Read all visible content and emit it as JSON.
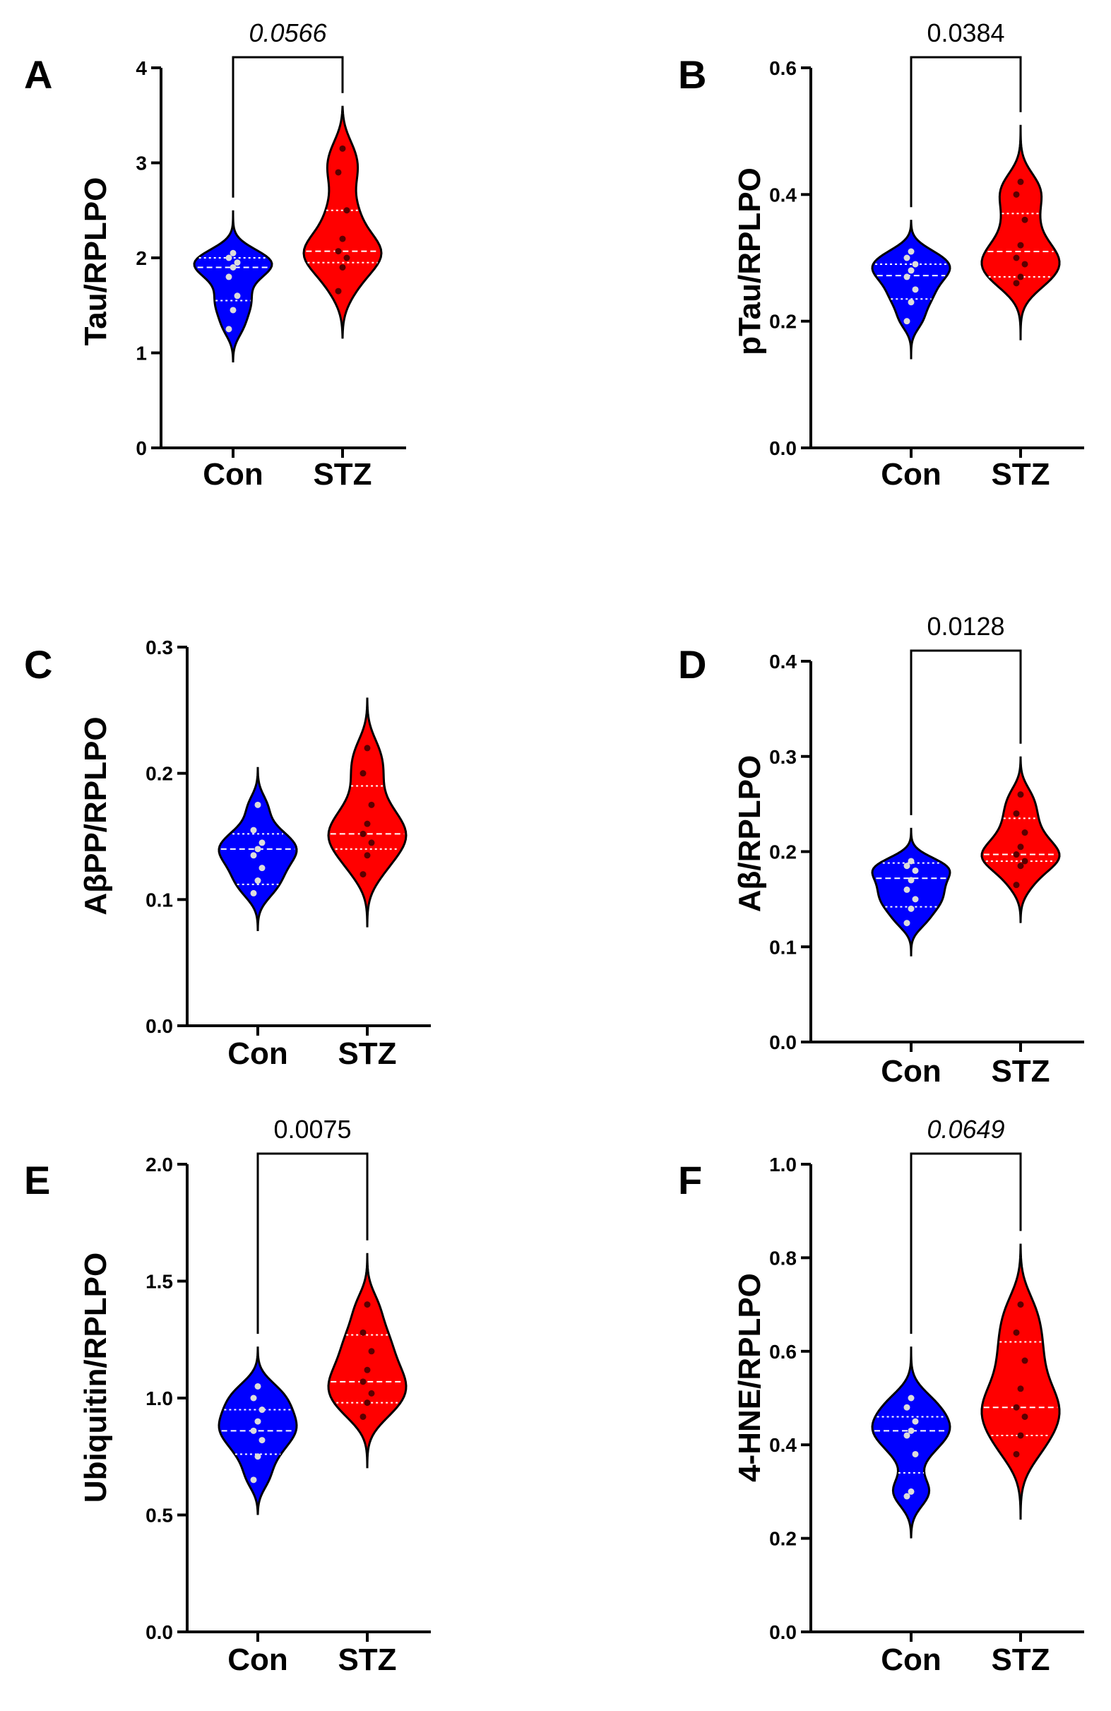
{
  "chart_data": [
    {
      "type": "violin",
      "panel": "A",
      "ylabel": "Tau/RPLPO",
      "ylim": [
        0,
        4
      ],
      "yticks": [
        "0",
        "1",
        "2",
        "3",
        "4"
      ],
      "categories": [
        "Con",
        "STZ"
      ],
      "colors": [
        "#0000ff",
        "#ff0000"
      ],
      "groups": [
        {
          "name": "Con",
          "min": 0.9,
          "max": 2.5,
          "median": 1.9,
          "q1": 1.55,
          "q3": 2.0,
          "points": [
            1.25,
            1.45,
            1.6,
            1.8,
            1.9,
            1.95,
            2.0,
            2.05
          ]
        },
        {
          "name": "STZ",
          "min": 1.15,
          "max": 3.6,
          "median": 2.07,
          "q1": 1.95,
          "q3": 2.5,
          "points": [
            1.65,
            1.9,
            2.0,
            2.07,
            2.2,
            2.5,
            2.9,
            3.15
          ]
        }
      ],
      "comparison": {
        "label": "0.0566",
        "italic": true
      }
    },
    {
      "type": "violin",
      "panel": "B",
      "ylabel": "pTau/RPLPO",
      "ylim": [
        0,
        0.6
      ],
      "yticks": [
        "0.0",
        "0.2",
        "0.4",
        "0.6"
      ],
      "categories": [
        "Con",
        "STZ"
      ],
      "colors": [
        "#0000ff",
        "#ff0000"
      ],
      "groups": [
        {
          "name": "Con",
          "min": 0.14,
          "max": 0.36,
          "median": 0.272,
          "q1": 0.235,
          "q3": 0.29,
          "points": [
            0.2,
            0.23,
            0.25,
            0.27,
            0.28,
            0.29,
            0.3,
            0.31
          ]
        },
        {
          "name": "STZ",
          "min": 0.17,
          "max": 0.51,
          "median": 0.31,
          "q1": 0.27,
          "q3": 0.37,
          "points": [
            0.26,
            0.27,
            0.29,
            0.3,
            0.32,
            0.36,
            0.4,
            0.42
          ]
        }
      ],
      "comparison": {
        "label": "0.0384",
        "italic": false
      }
    },
    {
      "type": "violin",
      "panel": "C",
      "ylabel": "AβPP/RPLPO",
      "ylim": [
        0,
        0.3
      ],
      "yticks": [
        "0.0",
        "0.1",
        "0.2",
        "0.3"
      ],
      "categories": [
        "Con",
        "STZ"
      ],
      "colors": [
        "#0000ff",
        "#ff0000"
      ],
      "groups": [
        {
          "name": "Con",
          "min": 0.075,
          "max": 0.205,
          "median": 0.14,
          "q1": 0.112,
          "q3": 0.152,
          "points": [
            0.105,
            0.115,
            0.125,
            0.135,
            0.14,
            0.145,
            0.155,
            0.175
          ]
        },
        {
          "name": "STZ",
          "min": 0.078,
          "max": 0.26,
          "median": 0.152,
          "q1": 0.14,
          "q3": 0.19,
          "points": [
            0.12,
            0.135,
            0.145,
            0.152,
            0.16,
            0.175,
            0.2,
            0.22
          ]
        }
      ],
      "comparison": null
    },
    {
      "type": "violin",
      "panel": "D",
      "ylabel": "Aβ/RPLPO",
      "ylim": [
        0,
        0.4
      ],
      "yticks": [
        "0.0",
        "0.1",
        "0.2",
        "0.3",
        "0.4"
      ],
      "categories": [
        "Con",
        "STZ"
      ],
      "colors": [
        "#0000ff",
        "#ff0000"
      ],
      "groups": [
        {
          "name": "Con",
          "min": 0.09,
          "max": 0.225,
          "median": 0.172,
          "q1": 0.142,
          "q3": 0.188,
          "points": [
            0.125,
            0.14,
            0.15,
            0.16,
            0.17,
            0.18,
            0.185,
            0.19
          ]
        },
        {
          "name": "STZ",
          "min": 0.125,
          "max": 0.3,
          "median": 0.197,
          "q1": 0.19,
          "q3": 0.235,
          "points": [
            0.165,
            0.185,
            0.19,
            0.197,
            0.205,
            0.22,
            0.24,
            0.26
          ]
        }
      ],
      "comparison": {
        "label": "0.0128",
        "italic": false
      }
    },
    {
      "type": "violin",
      "panel": "E",
      "ylabel": "Ubiquitin/RPLPO",
      "ylim": [
        0,
        2.0
      ],
      "yticks": [
        "0.0",
        "0.5",
        "1.0",
        "1.5",
        "2.0"
      ],
      "categories": [
        "Con",
        "STZ"
      ],
      "colors": [
        "#0000ff",
        "#ff0000"
      ],
      "groups": [
        {
          "name": "Con",
          "min": 0.5,
          "max": 1.22,
          "median": 0.86,
          "q1": 0.76,
          "q3": 0.95,
          "points": [
            0.65,
            0.75,
            0.82,
            0.86,
            0.9,
            0.95,
            1.0,
            1.05
          ]
        },
        {
          "name": "STZ",
          "min": 0.7,
          "max": 1.62,
          "median": 1.07,
          "q1": 0.98,
          "q3": 1.27,
          "points": [
            0.92,
            0.98,
            1.02,
            1.07,
            1.12,
            1.2,
            1.28,
            1.4
          ]
        }
      ],
      "comparison": {
        "label": "0.0075",
        "italic": false
      }
    },
    {
      "type": "violin",
      "panel": "F",
      "ylabel": "4-HNE/RPLPO",
      "ylim": [
        0,
        1.0
      ],
      "yticks": [
        "0.0",
        "0.2",
        "0.4",
        "0.6",
        "0.8",
        "1.0"
      ],
      "categories": [
        "Con",
        "STZ"
      ],
      "colors": [
        "#0000ff",
        "#ff0000"
      ],
      "groups": [
        {
          "name": "Con",
          "min": 0.2,
          "max": 0.61,
          "median": 0.43,
          "q1": 0.34,
          "q3": 0.46,
          "points": [
            0.29,
            0.3,
            0.38,
            0.42,
            0.43,
            0.45,
            0.48,
            0.5
          ]
        },
        {
          "name": "STZ",
          "min": 0.24,
          "max": 0.83,
          "median": 0.48,
          "q1": 0.42,
          "q3": 0.62,
          "points": [
            0.38,
            0.42,
            0.46,
            0.48,
            0.52,
            0.58,
            0.64,
            0.7
          ]
        }
      ],
      "comparison": {
        "label": "0.0649",
        "italic": true
      }
    }
  ]
}
